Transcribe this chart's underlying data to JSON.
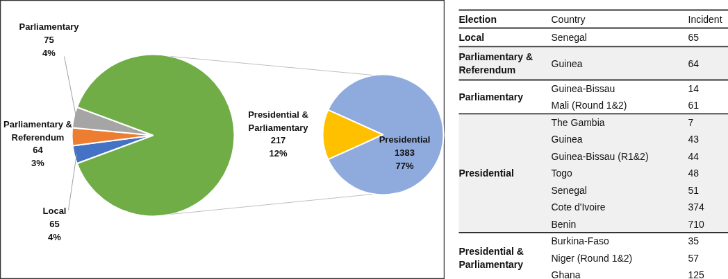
{
  "chart_data": [
    {
      "type": "pie",
      "categories": [
        "Local",
        "Parliamentary & Referendum",
        "Parliamentary",
        null
      ],
      "values": [
        65,
        64,
        75,
        1600
      ],
      "colors": [
        "#4472c4",
        "#ed7d31",
        "#a5a5a5",
        "#70ad47"
      ],
      "value_labels": [
        "65\n4%",
        "64\n3%",
        "75\n4%",
        null
      ]
    },
    {
      "type": "pie",
      "categories": [
        "Presidential & Parliamentary",
        "Presidential"
      ],
      "values": [
        217,
        1383
      ],
      "colors": [
        "#ffc000",
        "#8faadc"
      ],
      "value_labels": [
        "217\n12%",
        "1383\n77%"
      ]
    },
    {
      "type": "other",
      "categories": [
        "Election",
        "Country",
        "Incident"
      ],
      "cell_labels": [
        [
          "Local",
          "Senegal",
          "65"
        ],
        [
          "Parliamentary & Referendum",
          "Guinea",
          "64"
        ],
        [
          "Parliamentary",
          "Guinea-Bissau",
          "14"
        ],
        [
          null,
          "Mali (Round 1&2)",
          "61"
        ],
        [
          "Presidential",
          "The Gambia",
          "7"
        ],
        [
          null,
          "Guinea",
          "43"
        ],
        [
          null,
          "Guinea-Bissau (R1&2)",
          "44"
        ],
        [
          null,
          "Togo",
          "48"
        ],
        [
          null,
          "Senegal",
          "51"
        ],
        [
          null,
          "Cote d'Ivoire",
          "374"
        ],
        [
          null,
          "Benin",
          "710"
        ],
        [
          "Presidential & Parliamentary",
          "Burkina-Faso",
          "35"
        ],
        [
          null,
          "Niger (Round 1&2)",
          "57"
        ],
        [
          null,
          "Ghana",
          "125"
        ]
      ]
    }
  ]
}
